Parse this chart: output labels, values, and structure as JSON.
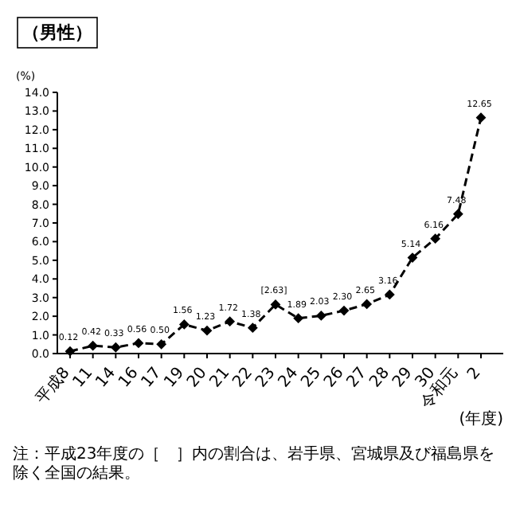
{
  "chart_data": {
    "type": "line",
    "title": "（男性）",
    "ylabel": "(%)",
    "xlabel": "(年度)",
    "categories": [
      "平成8",
      "11",
      "14",
      "16",
      "17",
      "19",
      "20",
      "21",
      "22",
      "23",
      "24",
      "25",
      "26",
      "27",
      "28",
      "29",
      "30",
      "令和元",
      "2"
    ],
    "series": [
      {
        "color": "#000000",
        "values": [
          0.12,
          0.42,
          0.33,
          0.56,
          0.5,
          1.56,
          1.23,
          1.72,
          1.38,
          2.63,
          1.89,
          2.03,
          2.3,
          2.65,
          3.16,
          5.14,
          6.16,
          7.48,
          12.65
        ],
        "value_labels": [
          "0.12",
          "0.42",
          "0.33",
          "0.56",
          "0.50",
          "1.56",
          "1.23",
          "1.72",
          "1.38",
          "[2.63]",
          "1.89",
          "2.03",
          "2.30",
          "2.65",
          "3.16",
          "5.14",
          "6.16",
          "7.48",
          "12.65"
        ]
      }
    ],
    "ylim": [
      0,
      14
    ],
    "yticks": [
      {
        "value": 0,
        "label": "0.0"
      },
      {
        "value": 1,
        "label": "1.0"
      },
      {
        "value": 2,
        "label": "2.0"
      },
      {
        "value": 3,
        "label": "3.0"
      },
      {
        "value": 4,
        "label": "4.0"
      },
      {
        "value": 5,
        "label": "5.0"
      },
      {
        "value": 6,
        "label": "6.0"
      },
      {
        "value": 7,
        "label": "7.0"
      },
      {
        "value": 8,
        "label": "8.0"
      },
      {
        "value": 9,
        "label": "9.0"
      },
      {
        "value": 10,
        "label": "10.0"
      },
      {
        "value": 11,
        "label": "11.0"
      },
      {
        "value": 12,
        "label": "12.0"
      },
      {
        "value": 13,
        "label": "13.0"
      },
      {
        "value": 14,
        "label": "14.0"
      }
    ],
    "marker": "diamond",
    "line_style": "dashed",
    "grid": false,
    "annotations": [
      "注：平成23年度の［　］内の割合は、岩手県、宮城県及び福島県を除く全国の結果。"
    ]
  }
}
